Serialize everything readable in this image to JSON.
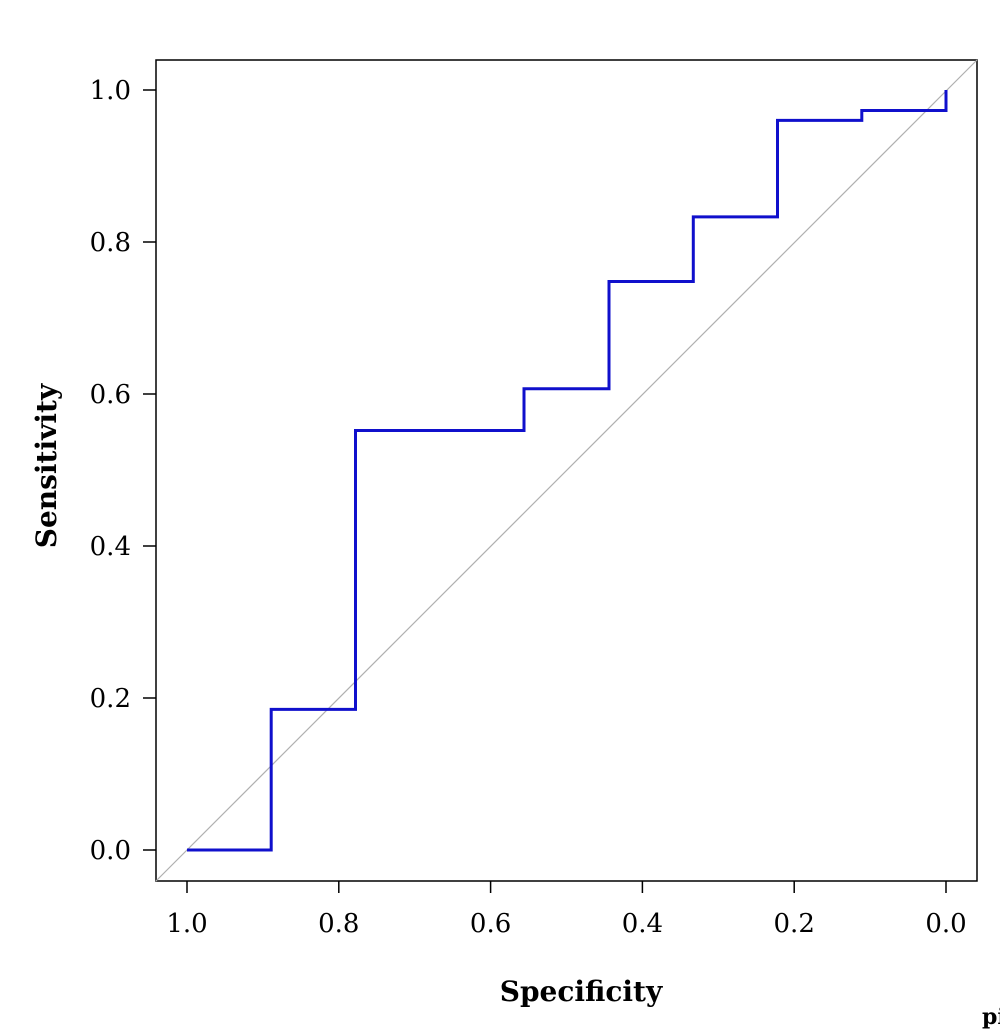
{
  "chart_data": {
    "type": "line",
    "title": "",
    "xlabel": "Specificity",
    "ylabel": "Sensitivity",
    "x_reversed": true,
    "xlim": [
      1.0,
      0.0
    ],
    "ylim": [
      0.0,
      1.0
    ],
    "x_ticks": [
      "1.0",
      "0.8",
      "0.6",
      "0.4",
      "0.2",
      "0.0"
    ],
    "y_ticks": [
      "0.0",
      "0.2",
      "0.4",
      "0.6",
      "0.8",
      "1.0"
    ],
    "grid": false,
    "series": [
      {
        "color": "#1010cc",
        "x": [
          1.0,
          0.889,
          0.889,
          0.778,
          0.778,
          0.556,
          0.556,
          0.444,
          0.444,
          0.333,
          0.333,
          0.222,
          0.222,
          0.111,
          0.111,
          0.0,
          0.0
        ],
        "y": [
          0.0,
          0.0,
          0.185,
          0.185,
          0.552,
          0.552,
          0.607,
          0.607,
          0.748,
          0.748,
          0.833,
          0.833,
          0.96,
          0.96,
          0.973,
          0.973,
          1.0
        ]
      }
    ],
    "reference_line": {
      "color": "#b0b0b0",
      "from": [
        1.0,
        0.0
      ],
      "to": [
        0.0,
        1.0
      ]
    },
    "clipped_text": "pil"
  }
}
